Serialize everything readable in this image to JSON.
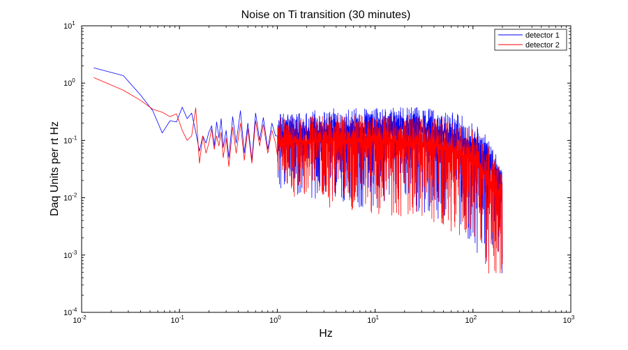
{
  "chart_data": {
    "type": "line",
    "title": "Noise on Ti transition (30 minutes)",
    "xlabel": "Hz",
    "ylabel": "Daq Units per rt Hz",
    "xscale": "log",
    "yscale": "log",
    "xlim": [
      0.01,
      1000
    ],
    "ylim": [
      0.0001,
      10
    ],
    "x_ticks": [
      {
        "value": 0.01,
        "base": "10",
        "exp": "-2"
      },
      {
        "value": 0.1,
        "base": "10",
        "exp": "-1"
      },
      {
        "value": 1,
        "base": "10",
        "exp": "0"
      },
      {
        "value": 10,
        "base": "10",
        "exp": "1"
      },
      {
        "value": 100,
        "base": "10",
        "exp": "2"
      },
      {
        "value": 1000,
        "base": "10",
        "exp": "3"
      }
    ],
    "y_ticks": [
      {
        "value": 10,
        "base": "10",
        "exp": "1"
      },
      {
        "value": 1,
        "base": "10",
        "exp": "0"
      },
      {
        "value": 0.1,
        "base": "10",
        "exp": "-1"
      },
      {
        "value": 0.01,
        "base": "10",
        "exp": "-2"
      },
      {
        "value": 0.001,
        "base": "10",
        "exp": "-3"
      },
      {
        "value": 0.0001,
        "base": "10",
        "exp": "-4"
      }
    ],
    "grid": false,
    "legend_position": "top-right",
    "series": [
      {
        "name": "detector 1",
        "color": "#0000ff",
        "x": [
          0.0133,
          0.0267,
          0.04,
          0.0533,
          0.0667,
          0.08,
          0.0933,
          0.1067,
          0.12,
          0.1333,
          0.1467,
          0.16,
          0.1733,
          0.1867,
          0.2,
          0.2133,
          0.2267,
          0.24,
          0.2533,
          0.2667,
          0.28,
          0.3,
          0.32,
          0.35,
          0.38,
          0.42,
          0.46,
          0.5,
          0.55,
          0.6,
          0.66,
          0.72,
          0.8,
          0.88,
          0.96
        ],
        "y": [
          1.85,
          1.35,
          0.62,
          0.33,
          0.135,
          0.22,
          0.21,
          0.38,
          0.24,
          0.3,
          0.14,
          0.065,
          0.12,
          0.09,
          0.14,
          0.18,
          0.08,
          0.21,
          0.11,
          0.24,
          0.075,
          0.15,
          0.05,
          0.26,
          0.09,
          0.33,
          0.06,
          0.2,
          0.045,
          0.3,
          0.1,
          0.25,
          0.07,
          0.2,
          0.12
        ],
        "band": {
          "from_hz": 1,
          "to_hz": 200,
          "upper": [
            [
              1,
              0.3
            ],
            [
              3,
              0.36
            ],
            [
              10,
              0.37
            ],
            [
              30,
              0.38
            ],
            [
              60,
              0.33
            ],
            [
              100,
              0.22
            ],
            [
              150,
              0.1
            ],
            [
              200,
              0.04
            ]
          ],
          "center": [
            [
              1,
              0.12
            ],
            [
              3,
              0.15
            ],
            [
              10,
              0.16
            ],
            [
              30,
              0.16
            ],
            [
              60,
              0.13
            ],
            [
              100,
              0.08
            ],
            [
              150,
              0.04
            ],
            [
              200,
              0.016
            ]
          ],
          "lower": [
            [
              1,
              0.015
            ],
            [
              3,
              0.008
            ],
            [
              10,
              0.006
            ],
            [
              30,
              0.005
            ],
            [
              60,
              0.003
            ],
            [
              100,
              0.0013
            ],
            [
              150,
              0.0005
            ],
            [
              200,
              0.0004
            ]
          ]
        }
      },
      {
        "name": "detector 2",
        "color": "#ff0000",
        "x": [
          0.0133,
          0.0267,
          0.04,
          0.0533,
          0.0667,
          0.08,
          0.0933,
          0.1067,
          0.12,
          0.1333,
          0.1467,
          0.16,
          0.1733,
          0.1867,
          0.2,
          0.2133,
          0.2267,
          0.24,
          0.2533,
          0.2667,
          0.28,
          0.3,
          0.32,
          0.35,
          0.38,
          0.42,
          0.46,
          0.5,
          0.55,
          0.6,
          0.66,
          0.72,
          0.8,
          0.88,
          0.96
        ],
        "y": [
          1.25,
          0.75,
          0.5,
          0.35,
          0.31,
          0.26,
          0.29,
          0.15,
          0.1,
          0.12,
          0.37,
          0.04,
          0.12,
          0.06,
          0.09,
          0.16,
          0.07,
          0.12,
          0.08,
          0.14,
          0.05,
          0.11,
          0.035,
          0.17,
          0.06,
          0.2,
          0.045,
          0.16,
          0.04,
          0.22,
          0.08,
          0.19,
          0.06,
          0.15,
          0.09
        ],
        "band": {
          "from_hz": 1,
          "to_hz": 200,
          "upper": [
            [
              1,
              0.25
            ],
            [
              3,
              0.28
            ],
            [
              10,
              0.28
            ],
            [
              30,
              0.27
            ],
            [
              60,
              0.24
            ],
            [
              100,
              0.16
            ],
            [
              150,
              0.08
            ],
            [
              200,
              0.025
            ]
          ],
          "center": [
            [
              1,
              0.09
            ],
            [
              3,
              0.1
            ],
            [
              10,
              0.1
            ],
            [
              30,
              0.09
            ],
            [
              60,
              0.07
            ],
            [
              100,
              0.045
            ],
            [
              150,
              0.02
            ],
            [
              200,
              0.01
            ]
          ],
          "lower": [
            [
              1,
              0.012
            ],
            [
              3,
              0.007
            ],
            [
              10,
              0.005
            ],
            [
              30,
              0.004
            ],
            [
              60,
              0.0025
            ],
            [
              100,
              0.001
            ],
            [
              150,
              0.0004
            ],
            [
              200,
              0.0003
            ]
          ]
        }
      }
    ]
  }
}
